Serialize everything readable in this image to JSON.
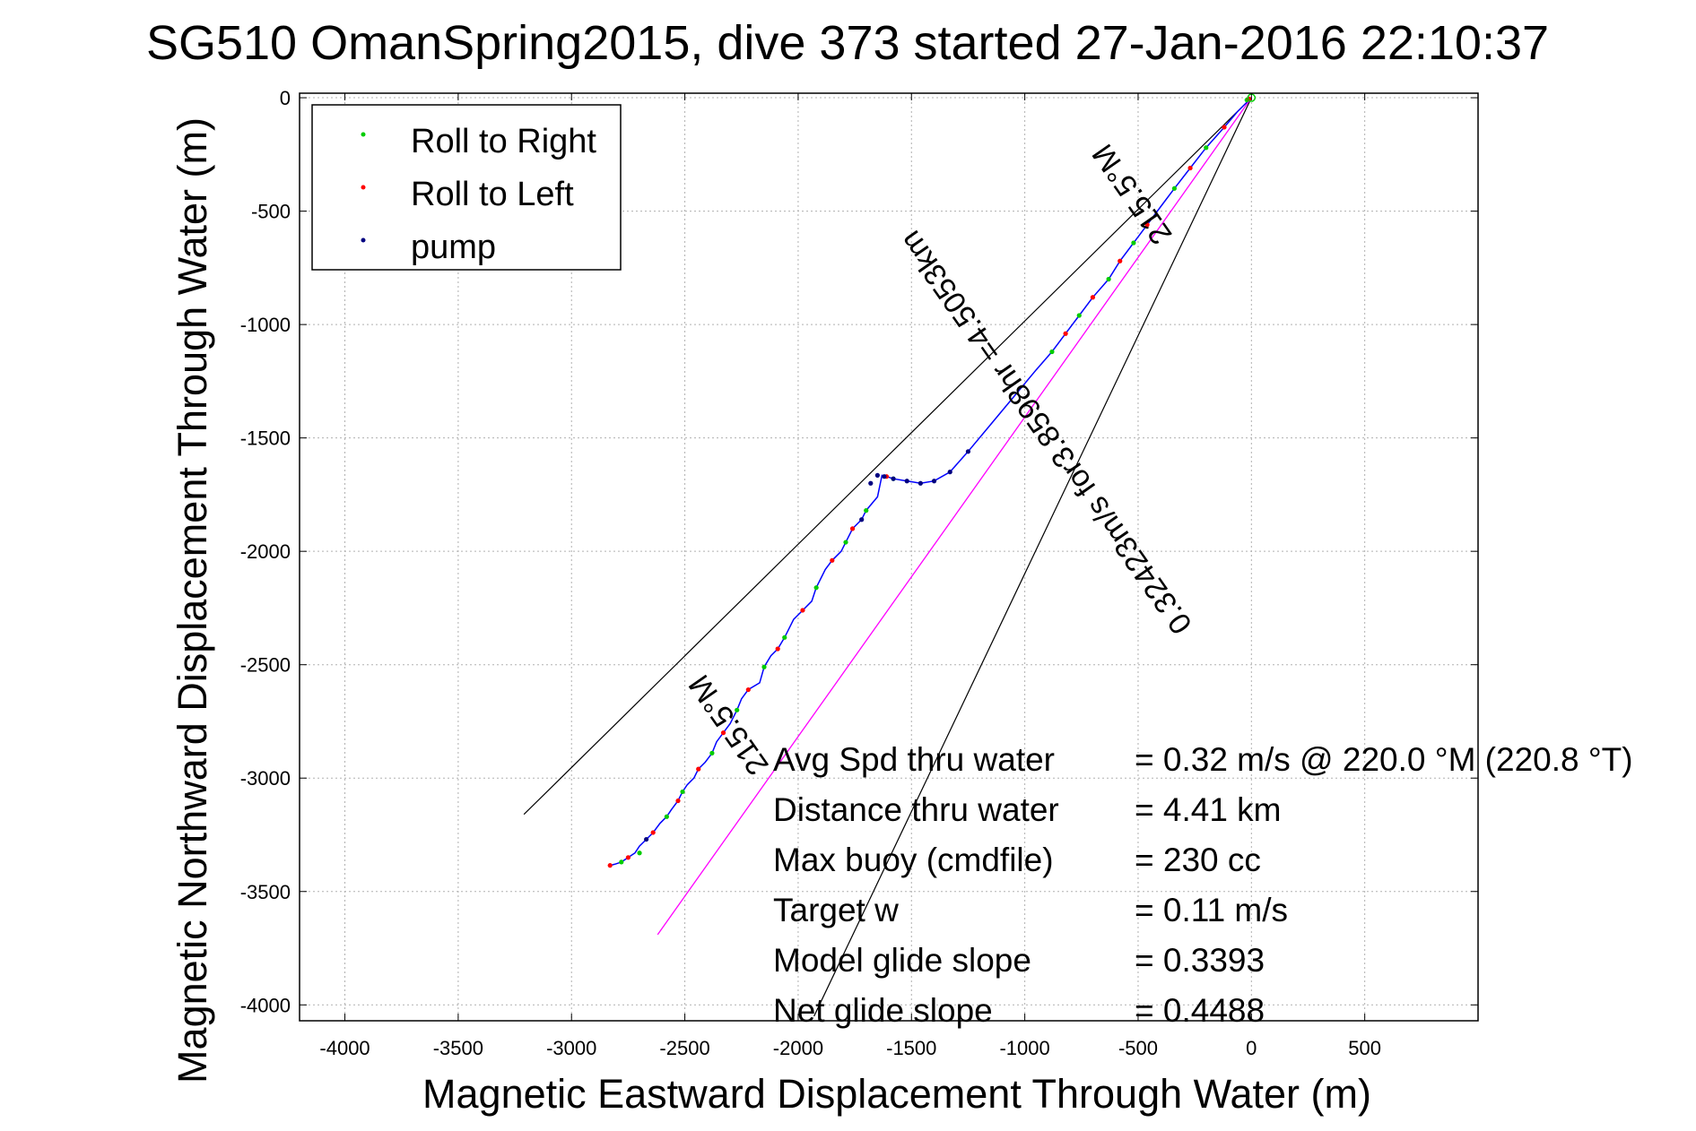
{
  "chart_data": {
    "type": "line",
    "title": "SG510 OmanSpring2015, dive 373 started 27-Jan-2016 22:10:37",
    "xlabel": "Magnetic Eastward Displacement Through Water (m)",
    "ylabel": "Magnetic Northward Displacement Through Water (m)",
    "xlim": [
      -4200,
      1000
    ],
    "ylim": [
      -4070,
      20
    ],
    "xticks": [
      -4000,
      -3500,
      -3000,
      -2500,
      -2000,
      -1500,
      -1000,
      -500,
      0,
      500
    ],
    "yticks": [
      0,
      -500,
      -1000,
      -1500,
      -2000,
      -2500,
      -3000,
      -3500,
      -4000
    ],
    "grid": true,
    "legend_position": "top-left",
    "legend": [
      "Roll to Right",
      "Roll to Left",
      "pump"
    ],
    "colors": {
      "track": "#0000ff",
      "roll_right": "#00cc00",
      "roll_left": "#ff0000",
      "pump": "#000080",
      "heading_line": "#ff00ff",
      "wedge": "#000000",
      "grid": "#b0b0b0"
    },
    "track": {
      "x": [
        0,
        -60,
        -120,
        -200,
        -270,
        -340,
        -400,
        -460,
        -520,
        -580,
        -630,
        -700,
        -760,
        -820,
        -880,
        -950,
        -1050,
        -1150,
        -1250,
        -1330,
        -1400,
        -1460,
        -1520,
        -1580,
        -1610,
        -1630,
        -1650,
        -1700,
        -1720,
        -1760,
        -1790,
        -1810,
        -1850,
        -1880,
        -1920,
        -1940,
        -1980,
        -2020,
        -2060,
        -2090,
        -2120,
        -2150,
        -2170,
        -2220,
        -2250,
        -2270,
        -2300,
        -2330,
        -2360,
        -2380,
        -2410,
        -2440,
        -2460,
        -2490,
        -2510,
        -2530,
        -2560,
        -2580,
        -2610,
        -2640,
        -2670,
        -2700,
        -2720,
        -2750,
        -2780,
        -2810,
        -2830
      ],
      "y": [
        0,
        -60,
        -130,
        -220,
        -310,
        -400,
        -480,
        -560,
        -640,
        -720,
        -800,
        -880,
        -960,
        -1040,
        -1120,
        -1200,
        -1320,
        -1440,
        -1560,
        -1650,
        -1690,
        -1700,
        -1690,
        -1680,
        -1670,
        -1665,
        -1760,
        -1820,
        -1860,
        -1900,
        -1960,
        -2000,
        -2040,
        -2080,
        -2160,
        -2220,
        -2260,
        -2300,
        -2380,
        -2430,
        -2460,
        -2510,
        -2580,
        -2610,
        -2650,
        -2700,
        -2760,
        -2800,
        -2840,
        -2890,
        -2930,
        -2960,
        -3000,
        -3030,
        -3060,
        -3100,
        -3140,
        -3170,
        -3200,
        -3240,
        -3270,
        -3300,
        -3330,
        -3350,
        -3370,
        -3380,
        -3385
      ]
    },
    "roll_right_points": {
      "x": [
        -20,
        -200,
        -340,
        -520,
        -630,
        -760,
        -880,
        -1580,
        -1700,
        -1790,
        -1920,
        -2060,
        -2150,
        -2270,
        -2380,
        -2510,
        -2580,
        -2700,
        -2780
      ],
      "y": [
        -10,
        -220,
        -400,
        -640,
        -800,
        -960,
        -1120,
        -1680,
        -1820,
        -1960,
        -2160,
        -2380,
        -2510,
        -2700,
        -2890,
        -3060,
        -3170,
        -3330,
        -3370
      ]
    },
    "roll_left_points": {
      "x": [
        -10,
        -120,
        -270,
        -460,
        -580,
        -700,
        -820,
        -1610,
        -1760,
        -1850,
        -1980,
        -2090,
        -2220,
        -2330,
        -2440,
        -2530,
        -2640,
        -2750,
        -2830
      ],
      "y": [
        -5,
        -130,
        -310,
        -560,
        -720,
        -880,
        -1040,
        -1670,
        -1900,
        -2040,
        -2260,
        -2430,
        -2610,
        -2800,
        -2960,
        -3100,
        -3240,
        -3350,
        -3385
      ]
    },
    "pump_points": {
      "x": [
        -1250,
        -1330,
        -1400,
        -1460,
        -1520,
        -1580,
        -1620,
        -1650,
        -1680,
        -1720,
        -2670
      ],
      "y": [
        -1560,
        -1650,
        -1690,
        -1700,
        -1690,
        -1680,
        -1670,
        -1665,
        -1700,
        -1860,
        -3270
      ]
    },
    "heading_line": {
      "x": [
        0,
        -2620
      ],
      "y": [
        0,
        -3690
      ]
    },
    "wedge_lines": [
      {
        "x": [
          0,
          -3210
        ],
        "y": [
          0,
          -3160
        ]
      },
      {
        "x": [
          0,
          -1930
        ],
        "y": [
          0,
          -4050
        ]
      }
    ],
    "annotations": [
      {
        "text": "0.32423m/s for3.8598hr =4.5053km",
        "x": -870,
        "y": -1450,
        "angle_deg": 235
      },
      {
        "text": "215.5°M",
        "x": -490,
        "y": -400,
        "angle_deg": 235
      },
      {
        "text": "215.5°M",
        "x": -2270,
        "y": -2740,
        "angle_deg": 235
      }
    ],
    "stats": [
      {
        "label": "Avg Spd thru water",
        "value": "=  0.32 m/s @ 220.0 °M (220.8 °T)"
      },
      {
        "label": "Distance thru water",
        "value": "=  4.41 km"
      },
      {
        "label": "Max buoy (cmdfile)",
        "value": "= 230 cc"
      },
      {
        "label": "Target w",
        "value": "= 0.11 m/s"
      },
      {
        "label": "Model glide slope",
        "value": "= 0.3393"
      },
      {
        "label": "Net glide slope",
        "value": "= 0.4488"
      }
    ]
  }
}
